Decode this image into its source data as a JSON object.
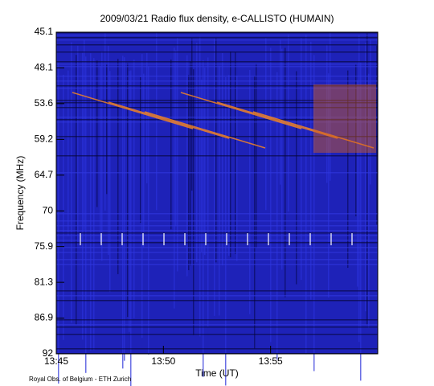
{
  "chart_data": {
    "type": "spectrogram",
    "title": "2009/03/21  Radio flux density, e-CALLISTO (HUMAIN)",
    "x_label": "Time (UT)",
    "y_label": "Frequency (MHz)",
    "footer": "Royal Obs. of Belgium - ETH Zurich",
    "xlim": [
      825,
      840
    ],
    "xticks": [
      {
        "value": 825,
        "label": "13:45"
      },
      {
        "value": 830,
        "label": "13:50"
      },
      {
        "value": 835,
        "label": "13:55"
      }
    ],
    "ylim": [
      45.1,
      92.0
    ],
    "yticks": [
      45.1,
      48.1,
      53.6,
      59.2,
      64.7,
      70.0,
      75.9,
      81.3,
      86.9,
      92.0
    ],
    "y_reversed": true
  }
}
